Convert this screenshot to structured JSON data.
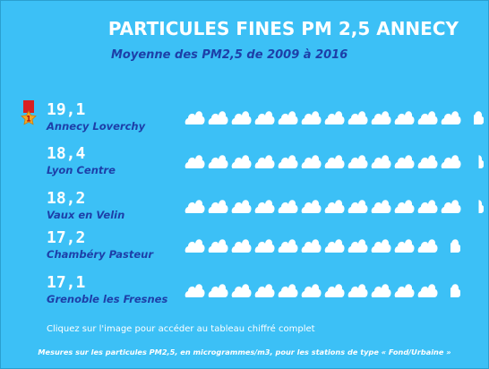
{
  "title": "PARTICULES FINES PM 2,5 ANNECY",
  "subtitle": "Moyenne des PM2,5 de 2009 à 2016",
  "stations": [
    {
      "value": "19,1",
      "name": "Annecy Loverchy",
      "clouds": 12.5,
      "rank": "1"
    },
    {
      "value": "18,4",
      "name": "Lyon Centre",
      "clouds": 12.25
    },
    {
      "value": "18,2",
      "name": "Vaux en Velin",
      "clouds": 12.25
    },
    {
      "value": "17,2",
      "name": "Chambéry Pasteur",
      "clouds": 11.5
    },
    {
      "value": "17,1",
      "name": "Grenoble les Fresnes",
      "clouds": 11.5
    }
  ],
  "link_text": "Cliquez sur l'image pour accéder au tableau chiffré complet",
  "footnote": "Mesures sur les particules PM2,5, en microgrammes/m3, pour les stations de type « Fond/Urbaine »",
  "icon": "cloud-icon",
  "colors": {
    "background": "#3cc0f6",
    "title": "#ffffff",
    "accent": "#1d3fa8",
    "medal_ribbon": "#d92020",
    "medal": "#f5a623"
  }
}
